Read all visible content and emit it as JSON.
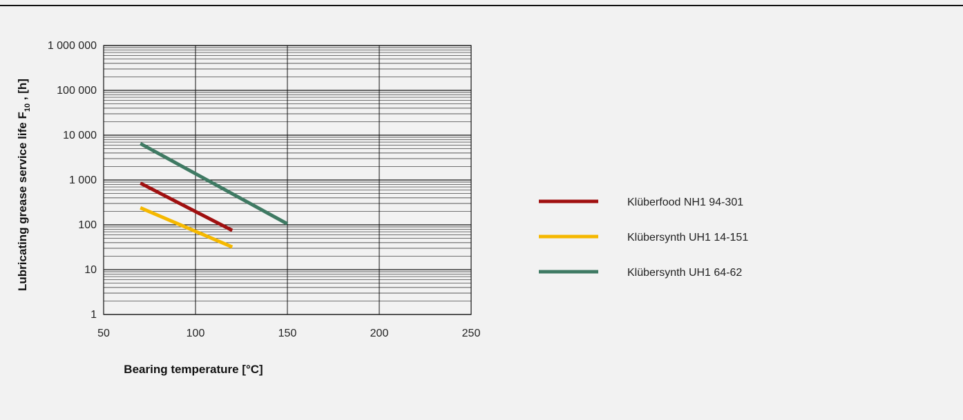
{
  "chart_data": {
    "type": "line",
    "xlabel": "Bearing temperature [°C]",
    "ylabel": {
      "prefix": "Lubricating grease service life F",
      "subscript": "10",
      "suffix": " , [h]"
    },
    "y_scale": "log",
    "xlim": [
      50,
      250
    ],
    "ylim": [
      1,
      1000000
    ],
    "x_ticks": [
      50,
      100,
      150,
      200,
      250
    ],
    "y_ticks": [
      {
        "value": 1,
        "label": "1"
      },
      {
        "value": 10,
        "label": "10"
      },
      {
        "value": 100,
        "label": "100"
      },
      {
        "value": 1000,
        "label": "1 000"
      },
      {
        "value": 10000,
        "label": "10 000"
      },
      {
        "value": 100000,
        "label": "100 000"
      },
      {
        "value": 1000000,
        "label": "1 000 000"
      }
    ],
    "grid": true,
    "legend_position": "right",
    "series": [
      {
        "name": "Klüberfood NH1 94-301",
        "color": "#a01010",
        "x": [
          70,
          120
        ],
        "y": [
          850,
          75
        ]
      },
      {
        "name": "Klübersynth UH1 14-151",
        "color": "#f5b800",
        "x": [
          70,
          120
        ],
        "y": [
          240,
          32
        ]
      },
      {
        "name": "Klübersynth UH1 64-62",
        "color": "#3f7a63",
        "x": [
          70,
          150
        ],
        "y": [
          6500,
          105
        ]
      }
    ]
  }
}
